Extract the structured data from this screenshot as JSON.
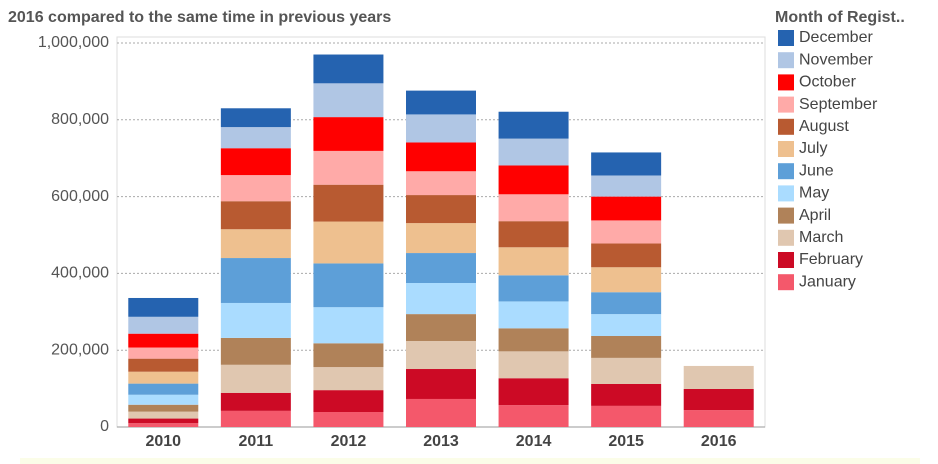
{
  "chart_data": {
    "type": "stacked-bar",
    "title": "2016 compared to the same time in previous years",
    "legend_title": "Month of Regist..",
    "categories": [
      "2010",
      "2011",
      "2012",
      "2013",
      "2014",
      "2015",
      "2016"
    ],
    "series": [
      {
        "name": "December",
        "color": "#2563b0",
        "values": [
          49000,
          49000,
          75000,
          62000,
          70000,
          60000,
          null
        ]
      },
      {
        "name": "November",
        "color": "#b0c6e4",
        "values": [
          44000,
          55000,
          88000,
          73000,
          70000,
          55000,
          null
        ]
      },
      {
        "name": "October",
        "color": "#ff0000",
        "values": [
          36000,
          70000,
          88000,
          75000,
          75000,
          62000,
          null
        ]
      },
      {
        "name": "September",
        "color": "#ffaaa8",
        "values": [
          29000,
          68000,
          88000,
          62000,
          70000,
          60000,
          null
        ]
      },
      {
        "name": "August",
        "color": "#b85a31",
        "values": [
          34000,
          73000,
          96000,
          73000,
          68000,
          62000,
          null
        ]
      },
      {
        "name": "July",
        "color": "#eec08f",
        "values": [
          31000,
          75000,
          109000,
          78000,
          73000,
          65000,
          null
        ]
      },
      {
        "name": "June",
        "color": "#5d9fd8",
        "values": [
          29000,
          117000,
          114000,
          78000,
          68000,
          57000,
          null
        ]
      },
      {
        "name": "May",
        "color": "#aadcff",
        "values": [
          26000,
          91000,
          94000,
          81000,
          70000,
          57000,
          null
        ]
      },
      {
        "name": "April",
        "color": "#b08259",
        "values": [
          18000,
          70000,
          62000,
          70000,
          60000,
          57000,
          null
        ]
      },
      {
        "name": "March",
        "color": "#e0c7b0",
        "values": [
          18000,
          73000,
          60000,
          73000,
          70000,
          68000,
          60000
        ]
      },
      {
        "name": "February",
        "color": "#cc0a25",
        "values": [
          12000,
          47000,
          57000,
          78000,
          70000,
          57000,
          55000
        ]
      },
      {
        "name": "January",
        "color": "#f4586b",
        "values": [
          10000,
          42000,
          39000,
          73000,
          57000,
          55000,
          44000
        ]
      }
    ],
    "ylim": [
      0,
      1000000
    ],
    "yticks": [
      {
        "value": 0,
        "label": "0"
      },
      {
        "value": 200000,
        "label": "200,000"
      },
      {
        "value": 400000,
        "label": "400,000"
      },
      {
        "value": 600000,
        "label": "600,000"
      },
      {
        "value": 800000,
        "label": "800,000"
      },
      {
        "value": 1000000,
        "label": "1,000,000"
      }
    ],
    "grid": true
  }
}
